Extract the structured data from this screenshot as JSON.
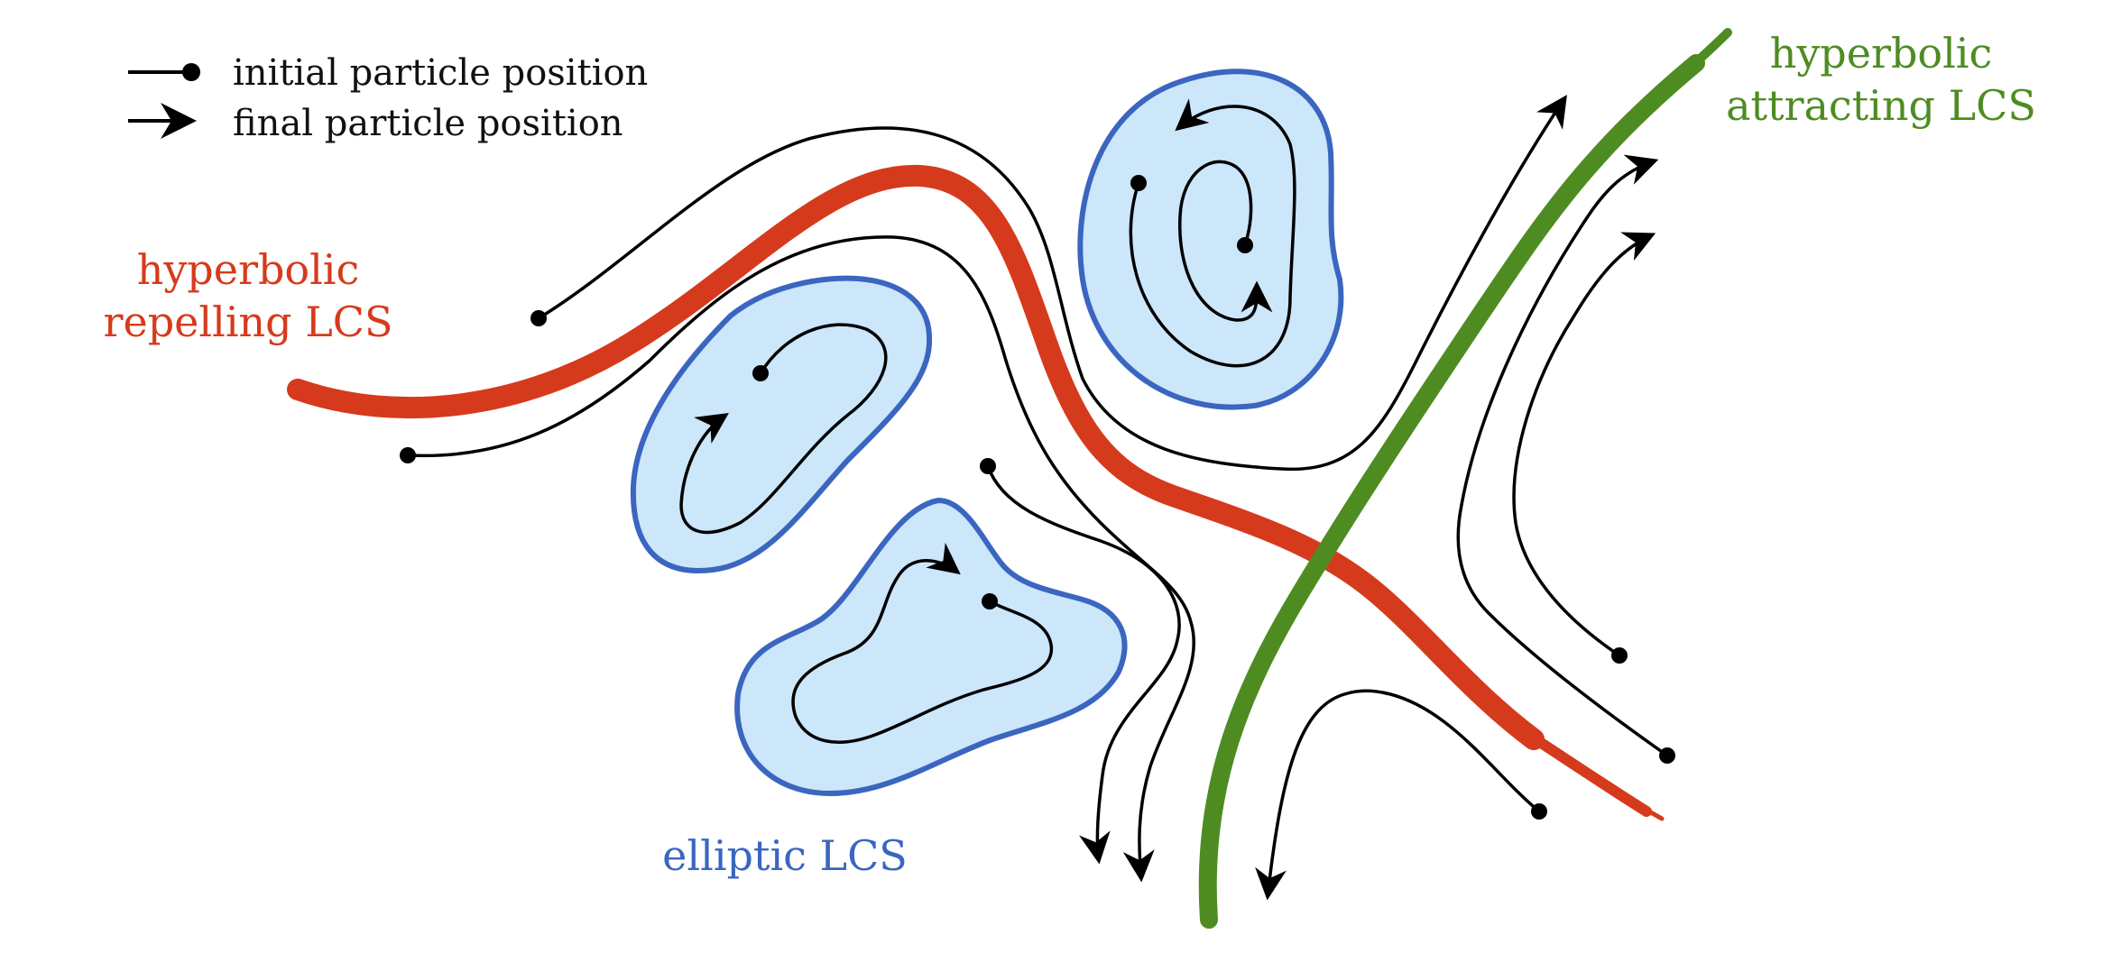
{
  "legend": {
    "initial_label": "initial particle position",
    "final_label": "final particle position"
  },
  "labels": {
    "repelling_line1": "hyperbolic",
    "repelling_line2": "repelling LCS",
    "attracting_line1": "hyperbolic",
    "attracting_line2": "attracting LCS",
    "elliptic": "elliptic LCS"
  },
  "colors": {
    "repelling": "#d63a1c",
    "attracting": "#4e8c22",
    "elliptic_stroke": "#3a66c0",
    "elliptic_fill": "#cce6fa",
    "trajectory": "#000000"
  },
  "icons": {
    "initial_marker": "dot-icon",
    "final_marker": "arrow-head-icon"
  }
}
